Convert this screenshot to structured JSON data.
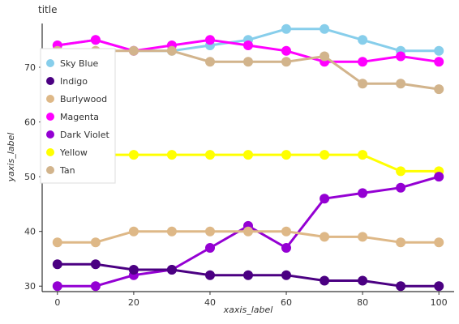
{
  "chart_data": {
    "type": "scatter",
    "title": "title",
    "xlabel": "xaxis_label",
    "ylabel": "yaxis_label",
    "xlim": [
      -4,
      104
    ],
    "ylim": [
      29,
      78
    ],
    "xticks": [
      0,
      20,
      40,
      60,
      80,
      100
    ],
    "yticks": [
      30,
      40,
      50,
      60,
      70
    ],
    "grid": false,
    "legend_position": "left",
    "x": [
      0,
      10,
      20,
      30,
      40,
      50,
      60,
      70,
      80,
      90,
      100
    ],
    "series": [
      {
        "name": "Sky Blue",
        "color": "#87ceeb",
        "values": [
          74,
          75,
          73,
          73,
          74,
          75,
          77,
          77,
          75,
          73,
          73
        ]
      },
      {
        "name": "Magenta",
        "color": "#ff00ff",
        "values": [
          74,
          75,
          73,
          74,
          75,
          74,
          73,
          71,
          71,
          72,
          71
        ]
      },
      {
        "name": "Tan",
        "color": "#d2b48c",
        "values": [
          73,
          73,
          73,
          73,
          71,
          71,
          71,
          72,
          67,
          67,
          66
        ]
      },
      {
        "name": "Yellow",
        "color": "#ffff00",
        "values": [
          54,
          54,
          54,
          54,
          54,
          54,
          54,
          54,
          54,
          51,
          51
        ]
      },
      {
        "name": "Dark Violet",
        "color": "#9400d3",
        "values": [
          30,
          30,
          32,
          33,
          37,
          41,
          37,
          46,
          47,
          48,
          50
        ]
      },
      {
        "name": "Burlywood",
        "color": "#deb887",
        "values": [
          38,
          38,
          40,
          40,
          40,
          40,
          40,
          39,
          39,
          38,
          38
        ]
      },
      {
        "name": "Indigo",
        "color": "#4b0082",
        "values": [
          34,
          34,
          33,
          33,
          32,
          32,
          32,
          31,
          31,
          30,
          30
        ]
      }
    ],
    "legend": [
      "Sky Blue",
      "Indigo",
      "Burlywood",
      "Magenta",
      "Dark Violet",
      "Yellow",
      "Tan"
    ],
    "x_tick_labels": [
      "0",
      "20",
      "40",
      "60",
      "80",
      "100"
    ],
    "y_tick_labels": [
      "30",
      "40",
      "50",
      "60",
      "70"
    ]
  }
}
